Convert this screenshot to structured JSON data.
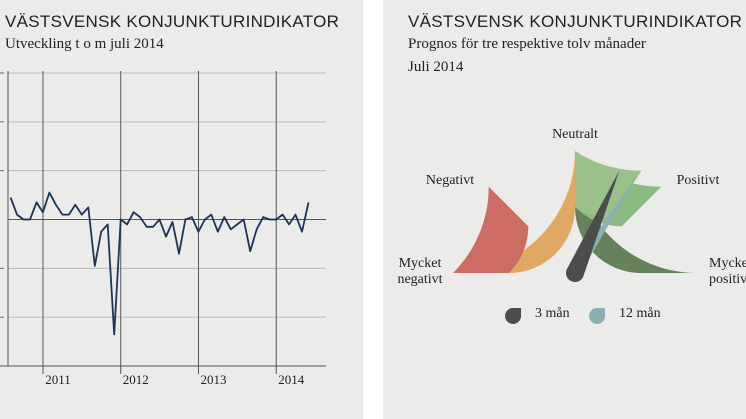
{
  "left_panel": {
    "title": "VÄSTSVENSK KONJUNKTURINDIKATOR",
    "subtitle": "Utveckling t o m juli 2014"
  },
  "right_panel": {
    "title": "VÄSTSVENSK KONJUNKTURINDIKATOR",
    "subtitle_line1": "Prognos för tre respektive tolv månader",
    "subtitle_line2": "Juli 2014"
  },
  "colors": {
    "panel_bg": "#ebebea",
    "line": "#1e3457",
    "grid": "#b9b9b9",
    "divider": "#555555",
    "very_negative": "#cd6c62",
    "negative": "#e0a862",
    "neutral": "#9cc08a",
    "positive": "#8bbb82",
    "very_positive": "#66825c",
    "needle_3m": "#4a4d4c",
    "needle_12m": "#8ab0b6"
  },
  "chart_data": [
    {
      "type": "line",
      "title": "VÄSTSVENSK KONJUNKTURINDIKATOR",
      "subtitle": "Utveckling t o m juli 2014",
      "x_labels": [
        "2011",
        "2012",
        "2013",
        "2014"
      ],
      "year_starts": [
        2011,
        2012,
        2013,
        2014
      ],
      "xlim": [
        2010.55,
        2014.64
      ],
      "ylim": [
        -3,
        3
      ],
      "grid": true,
      "series": [
        {
          "x_start": 2010.583,
          "x_step": 0.0833,
          "values": [
            0.45,
            0.1,
            0.0,
            0.0,
            0.35,
            0.15,
            0.55,
            0.3,
            0.1,
            0.1,
            0.3,
            0.1,
            0.25,
            -0.95,
            -0.25,
            -0.1,
            -2.35,
            0.0,
            -0.1,
            0.15,
            0.05,
            -0.15,
            -0.15,
            0.0,
            -0.35,
            -0.05,
            -0.7,
            0.0,
            0.05,
            -0.25,
            0.0,
            0.1,
            -0.25,
            0.05,
            -0.2,
            -0.1,
            0.0,
            -0.65,
            -0.2,
            0.05,
            0.0,
            0.0,
            0.1,
            -0.1,
            0.1,
            -0.25,
            0.35
          ]
        }
      ]
    },
    {
      "type": "gauge",
      "title": "VÄSTSVENSK KONJUNKTURINDIKATOR",
      "subtitle": [
        "Prognos för tre respektive tolv månader",
        "Juli 2014"
      ],
      "zones": [
        {
          "label_lines": [
            "Mycket",
            "negativt"
          ]
        },
        {
          "label_lines": [
            "Negativt"
          ]
        },
        {
          "label_lines": [
            "Neutralt"
          ]
        },
        {
          "label_lines": [
            "Positivt"
          ]
        },
        {
          "label_lines": [
            "Mycket",
            "positivt"
          ]
        }
      ],
      "range": [
        -1,
        1
      ],
      "needles": [
        {
          "name": "3 mån",
          "value": 0.26
        },
        {
          "name": "12 mån",
          "value": 0.36
        }
      ]
    }
  ]
}
